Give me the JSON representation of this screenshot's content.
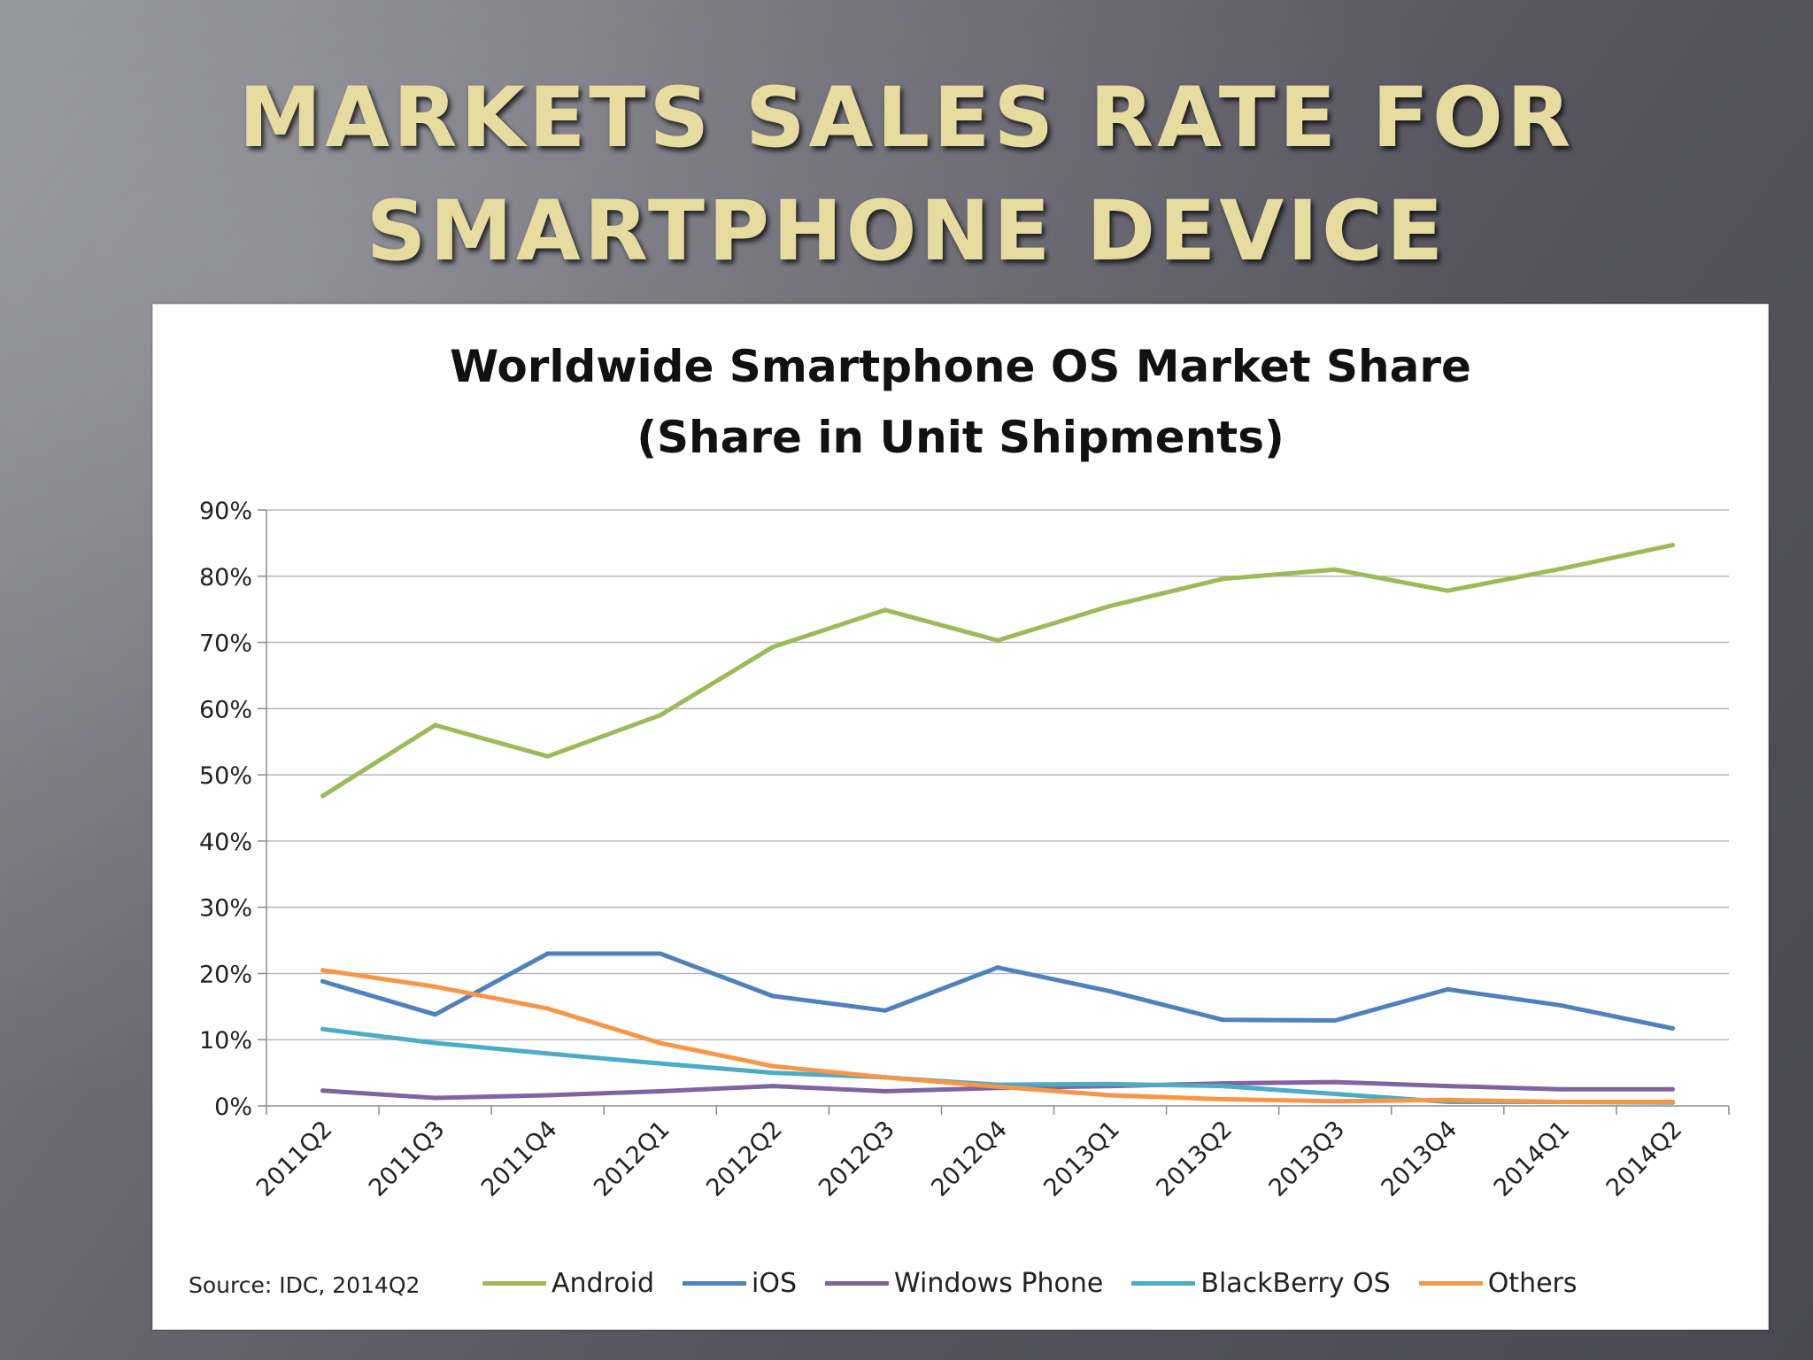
{
  "slide": {
    "title_line1": "MARKETS SALES RATE FOR",
    "title_line2": "SMARTPHONE DEVICE"
  },
  "source": "Source: IDC, 2014Q2",
  "colors": {
    "Android": "#9bbb59",
    "iOS": "#4f81bd",
    "Windows Phone": "#8064a2",
    "BlackBerry OS": "#4bacc6",
    "Others": "#f79646"
  },
  "chart_data": {
    "type": "line",
    "title_line1": "Worldwide Smartphone OS Market Share",
    "title_line2": "(Share in Unit Shipments)",
    "xlabel": "",
    "ylabel": "",
    "ylim": [
      0,
      90
    ],
    "yticks": [
      0,
      10,
      20,
      30,
      40,
      50,
      60,
      70,
      80,
      90
    ],
    "ytick_labels": [
      "0%",
      "10%",
      "20%",
      "30%",
      "40%",
      "50%",
      "60%",
      "70%",
      "80%",
      "90%"
    ],
    "grid": true,
    "legend_position": "bottom",
    "categories": [
      "2011Q2",
      "2011Q3",
      "2011Q4",
      "2012Q1",
      "2012Q2",
      "2012Q3",
      "2012Q4",
      "2013Q1",
      "2013Q2",
      "2013Q3",
      "2013Q4",
      "2014Q1",
      "2014Q2"
    ],
    "series": [
      {
        "name": "Android",
        "values": [
          46.8,
          57.5,
          52.8,
          59.0,
          69.3,
          74.9,
          70.3,
          75.5,
          79.6,
          81.0,
          77.8,
          81.1,
          84.7
        ]
      },
      {
        "name": "iOS",
        "values": [
          18.8,
          13.8,
          23.0,
          23.0,
          16.6,
          14.4,
          20.9,
          17.3,
          13.0,
          12.9,
          17.6,
          15.2,
          11.7
        ]
      },
      {
        "name": "Windows Phone",
        "values": [
          2.3,
          1.2,
          1.6,
          2.2,
          3.0,
          2.2,
          2.7,
          3.0,
          3.4,
          3.6,
          3.0,
          2.5,
          2.5
        ]
      },
      {
        "name": "BlackBerry OS",
        "values": [
          11.6,
          9.5,
          7.9,
          6.4,
          5.0,
          4.3,
          3.2,
          3.3,
          3.0,
          1.8,
          0.6,
          0.6,
          0.5
        ]
      },
      {
        "name": "Others",
        "values": [
          20.5,
          18.0,
          14.7,
          9.5,
          6.0,
          4.3,
          2.9,
          1.6,
          1.0,
          0.7,
          0.9,
          0.6,
          0.6
        ]
      }
    ]
  }
}
